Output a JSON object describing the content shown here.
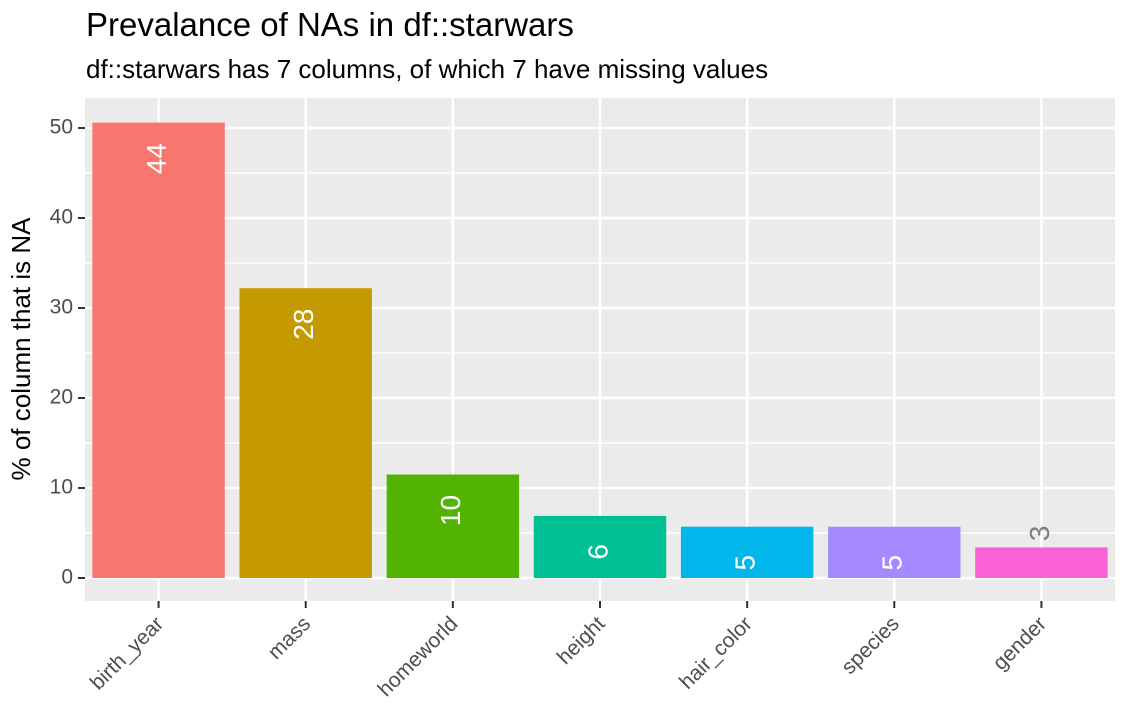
{
  "chart_data": {
    "type": "bar",
    "title": "Prevalance of NAs in df::starwars",
    "subtitle": "df::starwars has 7 columns, of which 7 have missing values",
    "xlabel": "",
    "ylabel": "% of column that is NA",
    "categories": [
      "birth_year",
      "mass",
      "homeworld",
      "height",
      "hair_color",
      "species",
      "gender"
    ],
    "values": [
      50.6,
      32.2,
      11.5,
      6.9,
      5.7,
      5.7,
      3.4
    ],
    "labels": [
      "44",
      "28",
      "10",
      "6",
      "5",
      "5",
      "3"
    ],
    "colors": [
      "#F8766D",
      "#C49A00",
      "#53B400",
      "#00C094",
      "#00B6EB",
      "#A58AFF",
      "#FB61D7"
    ],
    "ylim": [
      -2.5,
      53
    ],
    "yticks": [
      0,
      10,
      20,
      30,
      40,
      50
    ],
    "grid": true,
    "legend": "none",
    "panel_background": "#EBEBEB"
  }
}
